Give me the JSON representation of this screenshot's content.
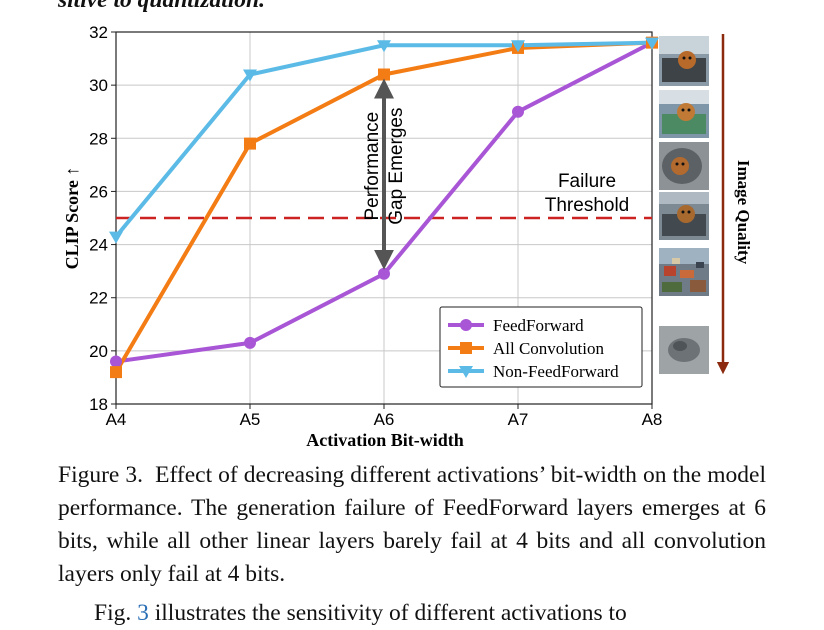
{
  "header_text": "sitive to quantization.",
  "chart_data": {
    "type": "line",
    "title": "",
    "xlabel": "Activation Bit-width",
    "ylabel": "CLIP Score ↑",
    "x": [
      "A4",
      "A5",
      "A6",
      "A7",
      "A8"
    ],
    "ylim": [
      18,
      32
    ],
    "yticks": [
      18,
      20,
      22,
      24,
      26,
      28,
      30,
      32
    ],
    "grid": true,
    "legend_position": "bottom-right",
    "series": [
      {
        "name": "FeedForward",
        "color": "#a855d6",
        "marker": "circle",
        "values": [
          19.6,
          20.3,
          22.9,
          29.0,
          31.6
        ]
      },
      {
        "name": "All Convolution",
        "color": "#f47c14",
        "marker": "square",
        "values": [
          19.2,
          27.8,
          30.4,
          31.4,
          31.6
        ]
      },
      {
        "name": "Non-FeedForward",
        "color": "#5bbbe6",
        "marker": "triangle-down",
        "values": [
          24.3,
          30.4,
          31.5,
          31.5,
          31.6
        ]
      }
    ],
    "threshold": {
      "value": 25.0,
      "color": "#cc2222",
      "label_line1": "Failure",
      "label_line2": "Threshold"
    },
    "gap_annotation": {
      "x": "A6",
      "y_from": 22.9,
      "y_to": 30.4,
      "label_line1": "Performance",
      "label_line2": "Gap Emerges"
    },
    "quality_label": "Image Quality",
    "quality_arrow_color": "#8b2a0f",
    "thumbnail_icons": [
      "dog-in-car-thumbnail",
      "dog-in-car-thumbnail",
      "dog-in-car-thumbnail",
      "dog-in-car-thumbnail",
      "noisy-thumbnail",
      "blurred-gray-thumbnail"
    ]
  },
  "caption": {
    "label": "Figure 3.",
    "text": "Effect of decreasing different activations’ bit-width on the model performance. The generation failure of FeedForward layers emerges at 6 bits, while all other linear layers barely fail at 4 bits and all convolution layers only fail at 4 bits."
  },
  "body_text": {
    "prefix": "Fig.",
    "ref": "3",
    "rest": "illustrates the sensitivity of different activations to"
  }
}
